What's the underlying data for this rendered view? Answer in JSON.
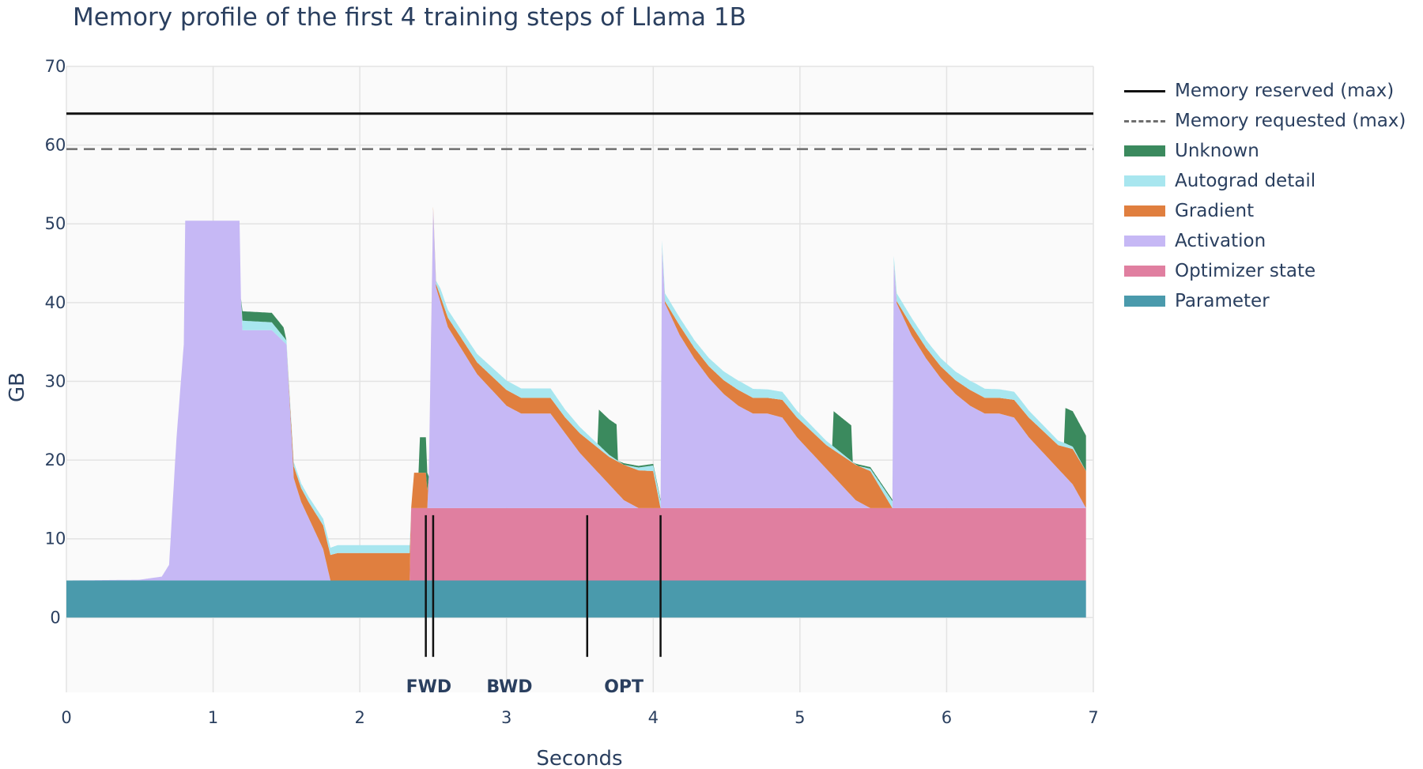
{
  "chart_data": {
    "type": "area",
    "title": "Memory profile of the first 4 training steps of Llama 1B",
    "xlabel": "Seconds",
    "ylabel": "GB",
    "xlim": [
      0,
      7
    ],
    "ylim": [
      -9.5,
      70
    ],
    "x_ticks": [
      "0",
      "1",
      "2",
      "3",
      "4",
      "5",
      "6",
      "7"
    ],
    "y_ticks": [
      "0",
      "10",
      "20",
      "30",
      "40",
      "50",
      "60",
      "70"
    ],
    "grid": true,
    "legend_position": "right",
    "reference_lines": [
      {
        "name": "Memory reserved (max)",
        "y": 64,
        "style": "solid",
        "color": "#111111"
      },
      {
        "name": "Memory requested (max)",
        "y": 59.5,
        "style": "dash",
        "color": "#6e6e6e"
      }
    ],
    "phase_markers": {
      "labels": [
        {
          "text": "FWD",
          "x": 2.47
        },
        {
          "text": "BWD",
          "x": 3.02
        },
        {
          "text": "OPT",
          "x": 3.8
        }
      ],
      "lines_x": [
        2.45,
        2.5,
        3.55,
        4.05
      ],
      "y_range": [
        -5,
        13
      ]
    },
    "series": [
      {
        "name": "Parameter",
        "color": "#4a9aac",
        "points": [
          [
            0,
            4.7
          ],
          [
            6.95,
            4.7
          ]
        ]
      },
      {
        "name": "Optimizer state",
        "color": "#e07fa0",
        "points": [
          [
            0,
            0
          ],
          [
            2.34,
            0
          ],
          [
            2.35,
            9.2
          ],
          [
            6.95,
            9.2
          ]
        ]
      },
      {
        "name": "Activation",
        "color": "#c6b8f5",
        "points": [
          [
            0,
            0
          ],
          [
            0.5,
            0.1
          ],
          [
            0.65,
            0.5
          ],
          [
            0.7,
            2
          ],
          [
            0.75,
            18
          ],
          [
            0.8,
            30
          ],
          [
            0.81,
            45.7
          ],
          [
            1.18,
            45.7
          ],
          [
            1.19,
            35.8
          ],
          [
            1.2,
            31.8
          ],
          [
            1.4,
            31.8
          ],
          [
            1.5,
            30
          ],
          [
            1.55,
            13
          ],
          [
            1.6,
            10
          ],
          [
            1.65,
            8
          ],
          [
            1.7,
            6
          ],
          [
            1.75,
            4
          ],
          [
            1.8,
            0
          ],
          [
            2.34,
            0
          ],
          [
            2.45,
            0
          ],
          [
            2.46,
            0
          ],
          [
            2.47,
            4
          ],
          [
            2.5,
            38
          ],
          [
            2.52,
            28
          ],
          [
            2.6,
            23
          ],
          [
            2.7,
            20
          ],
          [
            2.8,
            17
          ],
          [
            2.9,
            15
          ],
          [
            3.0,
            13
          ],
          [
            3.1,
            12
          ],
          [
            3.2,
            12
          ],
          [
            3.3,
            12
          ],
          [
            3.4,
            9.5
          ],
          [
            3.5,
            7
          ],
          [
            3.6,
            5
          ],
          [
            3.7,
            3
          ],
          [
            3.8,
            1
          ],
          [
            3.9,
            0
          ],
          [
            4.05,
            0
          ],
          [
            4.06,
            33
          ],
          [
            4.08,
            26
          ],
          [
            4.18,
            22
          ],
          [
            4.28,
            19
          ],
          [
            4.38,
            16.5
          ],
          [
            4.48,
            14.5
          ],
          [
            4.58,
            13
          ],
          [
            4.68,
            12
          ],
          [
            4.78,
            12
          ],
          [
            4.88,
            11.5
          ],
          [
            4.98,
            9
          ],
          [
            5.08,
            7
          ],
          [
            5.18,
            5
          ],
          [
            5.28,
            3
          ],
          [
            5.38,
            1
          ],
          [
            5.48,
            0
          ],
          [
            5.63,
            0
          ],
          [
            5.64,
            31
          ],
          [
            5.66,
            26
          ],
          [
            5.76,
            22
          ],
          [
            5.86,
            19
          ],
          [
            5.96,
            16.5
          ],
          [
            6.06,
            14.5
          ],
          [
            6.16,
            13
          ],
          [
            6.26,
            12
          ],
          [
            6.36,
            12
          ],
          [
            6.46,
            11.5
          ],
          [
            6.56,
            9
          ],
          [
            6.66,
            7
          ],
          [
            6.76,
            5
          ],
          [
            6.86,
            3
          ],
          [
            6.95,
            0
          ]
        ]
      },
      {
        "name": "Gradient",
        "color": "#e07f3f",
        "points": [
          [
            0,
            0
          ],
          [
            1.5,
            0
          ],
          [
            1.55,
            1.5
          ],
          [
            1.65,
            2
          ],
          [
            1.75,
            3
          ],
          [
            1.85,
            3.5
          ],
          [
            2.34,
            3.5
          ],
          [
            2.35,
            0
          ],
          [
            2.37,
            4.5
          ],
          [
            2.45,
            4.5
          ],
          [
            2.47,
            0
          ],
          [
            2.6,
            1.2
          ],
          [
            2.8,
            1.5
          ],
          [
            3.0,
            2
          ],
          [
            3.2,
            2
          ],
          [
            3.4,
            2
          ],
          [
            3.5,
            2.5
          ],
          [
            3.6,
            3
          ],
          [
            3.7,
            3.5
          ],
          [
            3.8,
            4.5
          ],
          [
            3.9,
            4.8
          ],
          [
            4.0,
            4.7
          ],
          [
            4.05,
            0
          ],
          [
            4.18,
            1.2
          ],
          [
            4.38,
            1.5
          ],
          [
            4.58,
            2
          ],
          [
            4.78,
            2
          ],
          [
            4.98,
            2.5
          ],
          [
            5.18,
            3
          ],
          [
            5.38,
            4.5
          ],
          [
            5.48,
            4.7
          ],
          [
            5.63,
            0
          ],
          [
            5.76,
            1.2
          ],
          [
            5.96,
            1.5
          ],
          [
            6.16,
            2
          ],
          [
            6.36,
            2
          ],
          [
            6.56,
            2.5
          ],
          [
            6.76,
            3
          ],
          [
            6.86,
            4.5
          ],
          [
            6.95,
            4.7
          ]
        ]
      },
      {
        "name": "Autograd detail",
        "color": "#a8e6ef",
        "points": [
          [
            0,
            0
          ],
          [
            1.19,
            0
          ],
          [
            1.2,
            1.2
          ],
          [
            1.4,
            1
          ],
          [
            1.5,
            0.5
          ],
          [
            1.6,
            0.6
          ],
          [
            1.85,
            1
          ],
          [
            2.34,
            1
          ],
          [
            2.35,
            0
          ],
          [
            2.5,
            0
          ],
          [
            2.55,
            1
          ],
          [
            2.7,
            1
          ],
          [
            3.0,
            1.2
          ],
          [
            3.1,
            1.2
          ],
          [
            3.3,
            1.2
          ],
          [
            3.5,
            0.8
          ],
          [
            3.8,
            0
          ],
          [
            4.08,
            1
          ],
          [
            4.3,
            1
          ],
          [
            4.6,
            1.2
          ],
          [
            4.9,
            1
          ],
          [
            5.2,
            0.5
          ],
          [
            5.4,
            0
          ],
          [
            5.66,
            1
          ],
          [
            5.9,
            1
          ],
          [
            6.2,
            1.2
          ],
          [
            6.5,
            1
          ],
          [
            6.8,
            0.5
          ],
          [
            6.95,
            0
          ]
        ]
      },
      {
        "name": "Unknown",
        "color": "#3b8a5e",
        "points": [
          [
            0,
            0
          ],
          [
            1.19,
            0
          ],
          [
            1.2,
            1.2
          ],
          [
            1.48,
            1.2
          ],
          [
            1.5,
            0
          ],
          [
            2.4,
            0
          ],
          [
            2.41,
            4.5
          ],
          [
            2.45,
            4.5
          ],
          [
            2.47,
            0
          ],
          [
            3.62,
            0
          ],
          [
            3.63,
            4.5
          ],
          [
            3.75,
            4.5
          ],
          [
            3.76,
            0
          ],
          [
            3.8,
            0.2
          ],
          [
            4.05,
            0.2
          ],
          [
            4.06,
            0
          ],
          [
            5.22,
            0
          ],
          [
            5.23,
            4.5
          ],
          [
            5.35,
            4.5
          ],
          [
            5.36,
            0
          ],
          [
            5.4,
            0.2
          ],
          [
            5.63,
            0.2
          ],
          [
            5.64,
            0
          ],
          [
            6.8,
            0
          ],
          [
            6.81,
            4.5
          ],
          [
            6.95,
            4.5
          ]
        ]
      }
    ]
  }
}
